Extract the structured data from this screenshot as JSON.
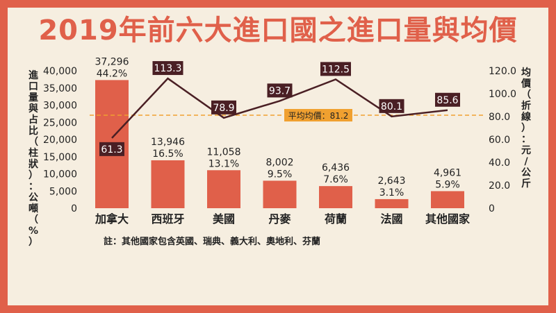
{
  "title": "2019年前六大進口國之進口量與均價",
  "chart_data": {
    "type": "bar+line",
    "categories": [
      "加拿大",
      "西班牙",
      "美國",
      "丹麥",
      "荷蘭",
      "法國",
      "其他國家"
    ],
    "volume": {
      "values": [
        37296,
        13946,
        11058,
        8002,
        6436,
        2643,
        4961
      ],
      "labels": [
        "37,296",
        "13,946",
        "11,058",
        "8,002",
        "6,436",
        "2,643",
        "4,961"
      ],
      "shares": [
        "44.2%",
        "16.5%",
        "13.1%",
        "9.5%",
        "7.6%",
        "3.1%",
        "5.9%"
      ],
      "color": "#e0604a"
    },
    "price": {
      "values": [
        61.3,
        113.3,
        78.9,
        93.7,
        112.5,
        80.1,
        85.6
      ],
      "labels": [
        "61.3",
        "113.3",
        "78.9",
        "93.7",
        "112.5",
        "80.1",
        "85.6"
      ],
      "color": "#4a1f24"
    },
    "average": {
      "value": 81.2,
      "label": "平均均價：81.2",
      "color": "#f0a030"
    },
    "y_left": {
      "label": "進口量與占比（柱狀）：公噸（%）",
      "ylim": [
        0,
        40000
      ],
      "ticks": [
        "0",
        "5,000",
        "10,000",
        "15,000",
        "20,000",
        "25,000",
        "30,000",
        "35,000",
        "40,000"
      ]
    },
    "y_right": {
      "label": "均價（折線）：元/公斤",
      "ylim": [
        0,
        120
      ],
      "ticks": [
        "0",
        "20.0",
        "40.0",
        "60.0",
        "80.0",
        "100.0",
        "120.0"
      ]
    }
  },
  "note": "註：其他國家包含英國、瑞典、義大利、奧地利、芬蘭"
}
